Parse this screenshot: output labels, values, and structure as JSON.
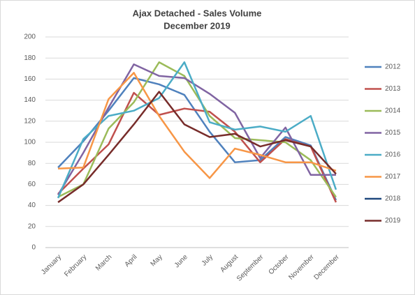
{
  "chart_data": {
    "type": "line",
    "title": "Ajax Detached - Sales Volume",
    "subtitle": "December 2019",
    "categories": [
      "January",
      "February",
      "March",
      "April",
      "May",
      "June",
      "July",
      "August",
      "September",
      "October",
      "November",
      "December"
    ],
    "series": [
      {
        "name": "2012",
        "color": "#4f81bd",
        "values": [
          76,
          101,
          130,
          161,
          155,
          145,
          110,
          81,
          83,
          105,
          97,
          45
        ]
      },
      {
        "name": "2013",
        "color": "#c0504d",
        "values": [
          51,
          75,
          98,
          147,
          126,
          132,
          129,
          110,
          81,
          103,
          96,
          43
        ]
      },
      {
        "name": "2014",
        "color": "#9bbb59",
        "values": [
          48,
          60,
          113,
          138,
          176,
          163,
          125,
          104,
          102,
          100,
          83,
          48
        ]
      },
      {
        "name": "2015",
        "color": "#8064a2",
        "values": [
          50,
          90,
          133,
          174,
          163,
          161,
          146,
          128,
          85,
          114,
          69,
          69
        ]
      },
      {
        "name": "2016",
        "color": "#4bacc6",
        "values": [
          47,
          103,
          125,
          130,
          142,
          176,
          119,
          112,
          115,
          110,
          125,
          55
        ]
      },
      {
        "name": "2017",
        "color": "#f79646",
        "values": [
          75,
          76,
          141,
          166,
          125,
          91,
          66,
          94,
          88,
          81,
          81,
          73
        ]
      },
      {
        "name": "2018",
        "color": "#1f497d",
        "values": [
          null,
          null,
          null,
          null,
          null,
          null,
          null,
          null,
          null,
          null,
          null,
          null
        ]
      },
      {
        "name": "2019",
        "color": "#772c2a",
        "values": [
          43,
          60,
          88,
          117,
          148,
          117,
          105,
          108,
          96,
          102,
          96,
          70
        ]
      }
    ],
    "ylim": [
      0,
      200
    ],
    "yticks": [
      0,
      20,
      40,
      60,
      80,
      100,
      120,
      140,
      160,
      180,
      200
    ],
    "grid": true
  }
}
